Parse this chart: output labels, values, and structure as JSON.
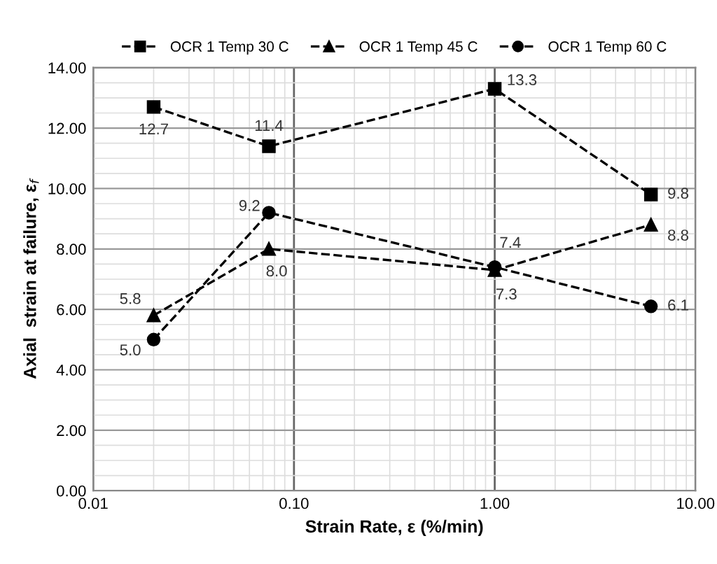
{
  "chart_data": {
    "type": "line",
    "xlabel": "Strain Rate, ε (%/min)",
    "ylabel": "Axial  strain at failure, ε$_{f}$",
    "x": [
      0.02,
      0.075,
      1.0,
      6.0
    ],
    "series": [
      {
        "name": "OCR 1 Temp 30 C",
        "color": "#000000",
        "marker": "square",
        "values": [
          12.7,
          11.4,
          13.3,
          9.8
        ],
        "value_labels": [
          "12.7",
          "11.4",
          "13.3",
          "9.8"
        ]
      },
      {
        "name": "OCR 1 Temp 45 C",
        "color": "#000000",
        "marker": "triangle",
        "values": [
          5.8,
          8.0,
          7.3,
          8.8
        ],
        "value_labels": [
          "5.8",
          "8.0",
          "7.3",
          "8.8"
        ]
      },
      {
        "name": "OCR 1 Temp 60 C",
        "color": "#000000",
        "marker": "circle",
        "values": [
          5.0,
          9.2,
          7.4,
          6.1
        ],
        "value_labels": [
          "5.0",
          "9.2",
          "7.4",
          "6.1"
        ]
      }
    ],
    "log": "x",
    "xlim": [
      0.01,
      10
    ],
    "xticks": [
      {
        "value": 0.01,
        "label": "0.01"
      },
      {
        "value": 0.1,
        "label": "0.10"
      },
      {
        "value": 1,
        "label": "1.00"
      },
      {
        "value": 10,
        "label": "10.00"
      }
    ],
    "ylim": [
      0,
      14
    ],
    "yticks": [
      {
        "value": 0,
        "label": "0.00"
      },
      {
        "value": 2,
        "label": "2.00"
      },
      {
        "value": 4,
        "label": "4.00"
      },
      {
        "value": 6,
        "label": "6.00"
      },
      {
        "value": 8,
        "label": "8.00"
      },
      {
        "value": 10,
        "label": "10.00"
      },
      {
        "value": 12,
        "label": "12.00"
      },
      {
        "value": 14,
        "label": "14.00"
      }
    ],
    "grid": true,
    "legend": "top",
    "line_style": "dashed"
  }
}
